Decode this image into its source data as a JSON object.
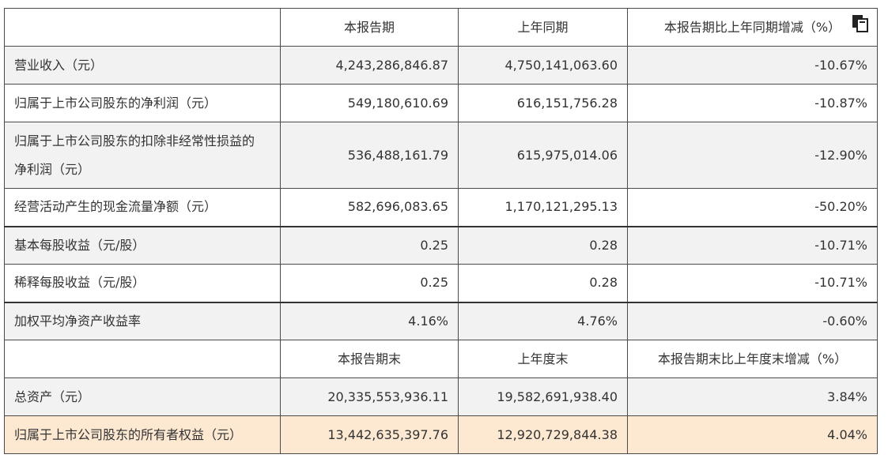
{
  "header": {
    "col1": "",
    "col2": "本报告期",
    "col3": "上年同期",
    "col4": "本报告期比上年同期增减（%）",
    "copy_icon": "copy-icon"
  },
  "rows": [
    {
      "label": "营业收入（元）",
      "current": "4,243,286,846.87",
      "prior": "4,750,141,063.60",
      "change": "-10.67%"
    },
    {
      "label": "归属于上市公司股东的净利润（元）",
      "current": "549,180,610.69",
      "prior": "616,151,756.28",
      "change": "-10.87%"
    },
    {
      "label_line1": "归属于上市公司股东的扣除非经常性损益的",
      "label_line2": "净利润（元）",
      "current": "536,488,161.79",
      "prior": "615,975,014.06",
      "change": "-12.90%"
    },
    {
      "label": "经营活动产生的现金流量净额（元）",
      "current": "582,696,083.65",
      "prior": "1,170,121,295.13",
      "change": "-50.20%"
    },
    {
      "label": "基本每股收益（元/股）",
      "current": "0.25",
      "prior": "0.28",
      "change": "-10.71%"
    },
    {
      "label": "稀释每股收益（元/股）",
      "current": "0.25",
      "prior": "0.28",
      "change": "-10.71%"
    },
    {
      "label": "加权平均净资产收益率",
      "current": "4.16%",
      "prior": "4.76%",
      "change": "-0.60%"
    }
  ],
  "subheader": {
    "col1": "",
    "col2": "本报告期末",
    "col3": "上年度末",
    "col4": "本报告期末比上年度末增减（%）"
  },
  "rows2": [
    {
      "label": "总资产（元）",
      "current": "20,335,553,936.11",
      "prior": "19,582,691,938.40",
      "change": "3.84%"
    },
    {
      "label": "归属于上市公司股东的所有者权益（元）",
      "current": "13,442,635,397.76",
      "prior": "12,920,729,844.38",
      "change": "4.04%"
    }
  ],
  "colors": {
    "highlight_row": "#fde9d2",
    "gray_row": "#f2f2f2",
    "border": "#4a4a4a"
  }
}
